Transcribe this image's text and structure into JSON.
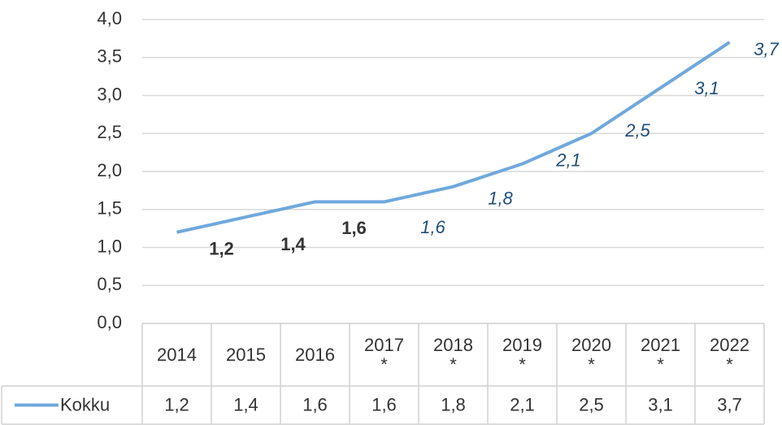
{
  "chart_data": {
    "type": "line",
    "categories": [
      "2014",
      "2015",
      "2016",
      "2017\n*",
      "2018\n*",
      "2019\n*",
      "2020\n*",
      "2021\n*",
      "2022\n*"
    ],
    "series": [
      {
        "name": "Kokku",
        "color": "#6fa8dc",
        "values": [
          1.2,
          1.4,
          1.6,
          1.6,
          1.8,
          2.1,
          2.5,
          3.1,
          3.7
        ],
        "value_labels": [
          "1,2",
          "1,4",
          "1,6",
          "1,6",
          "1,8",
          "2,1",
          "2,5",
          "3,1",
          "3,7"
        ]
      }
    ],
    "ylim": [
      0,
      4
    ],
    "yticks": [
      {
        "value": 0,
        "label": "0,0"
      },
      {
        "value": 0.5,
        "label": "0,5"
      },
      {
        "value": 1,
        "label": "1,0"
      },
      {
        "value": 1.5,
        "label": "1,5"
      },
      {
        "value": 2,
        "label": "2,0"
      },
      {
        "value": 2.5,
        "label": "2,5"
      },
      {
        "value": 3,
        "label": "3,0"
      },
      {
        "value": 3.5,
        "label": "3,5"
      },
      {
        "value": 4,
        "label": "4,0"
      }
    ],
    "grid": true
  }
}
